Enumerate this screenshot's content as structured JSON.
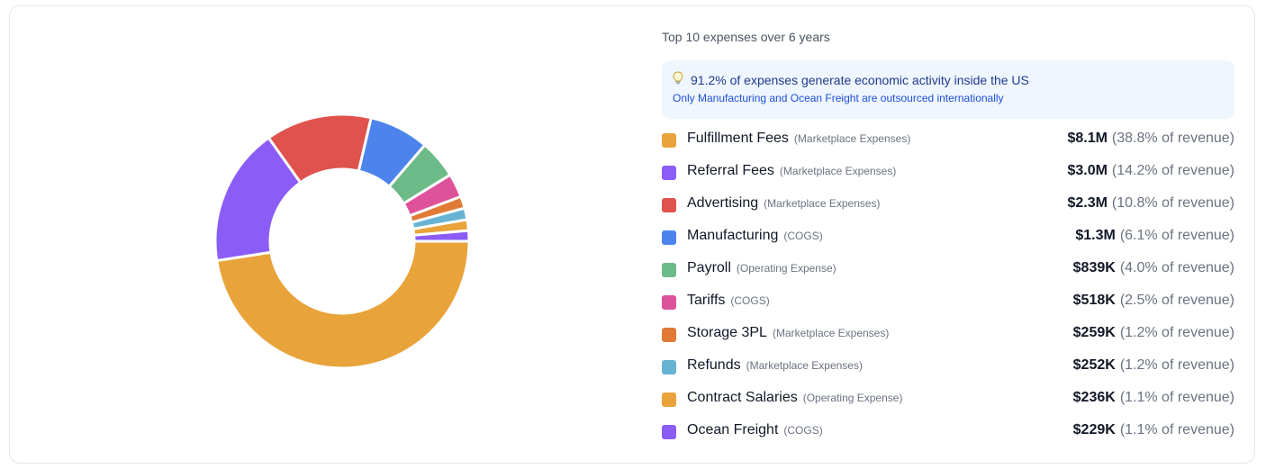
{
  "panel": {
    "heading": "Top 10 expenses over 6 years",
    "insight": {
      "icon": "lightbulb-icon",
      "title": "91.2% of expenses generate economic activity inside the US",
      "subtitle": "Only Manufacturing and Ocean Freight are outsourced internationally"
    }
  },
  "chart_data": {
    "type": "pie",
    "donut": true,
    "unit": "USD",
    "series": [
      {
        "label": "Fulfillment Fees",
        "category": "(Marketplace Expenses)",
        "value": 8100000,
        "amount": "$8.1M",
        "percent": 38.8,
        "percent_text": "(38.8% of revenue)",
        "color": "#E8A33A"
      },
      {
        "label": "Referral Fees",
        "category": "(Marketplace Expenses)",
        "value": 3000000,
        "amount": "$3.0M",
        "percent": 14.2,
        "percent_text": "(14.2% of revenue)",
        "color": "#8B5CF6"
      },
      {
        "label": "Advertising",
        "category": "(Marketplace Expenses)",
        "value": 2300000,
        "amount": "$2.3M",
        "percent": 10.8,
        "percent_text": "(10.8% of revenue)",
        "color": "#DF524D"
      },
      {
        "label": "Manufacturing",
        "category": "(COGS)",
        "value": 1300000,
        "amount": "$1.3M",
        "percent": 6.1,
        "percent_text": "(6.1% of revenue)",
        "color": "#4C84EC"
      },
      {
        "label": "Payroll",
        "category": "(Operating Expense)",
        "value": 839000,
        "amount": "$839K",
        "percent": 4.0,
        "percent_text": "(4.0% of revenue)",
        "color": "#6CBA88"
      },
      {
        "label": "Tariffs",
        "category": "(COGS)",
        "value": 518000,
        "amount": "$518K",
        "percent": 2.5,
        "percent_text": "(2.5% of revenue)",
        "color": "#DD529A"
      },
      {
        "label": "Storage 3PL",
        "category": "(Marketplace Expenses)",
        "value": 259000,
        "amount": "$259K",
        "percent": 1.2,
        "percent_text": "(1.2% of revenue)",
        "color": "#E07A35"
      },
      {
        "label": "Refunds",
        "category": "(Marketplace Expenses)",
        "value": 252000,
        "amount": "$252K",
        "percent": 1.2,
        "percent_text": "(1.2% of revenue)",
        "color": "#67B3D3"
      },
      {
        "label": "Contract Salaries",
        "category": "(Operating Expense)",
        "value": 236000,
        "amount": "$236K",
        "percent": 1.1,
        "percent_text": "(1.1% of revenue)",
        "color": "#E8A33A"
      },
      {
        "label": "Ocean Freight",
        "category": "(COGS)",
        "value": 229000,
        "amount": "$229K",
        "percent": 1.1,
        "percent_text": "(1.1% of revenue)",
        "color": "#8B5CF6"
      }
    ]
  }
}
